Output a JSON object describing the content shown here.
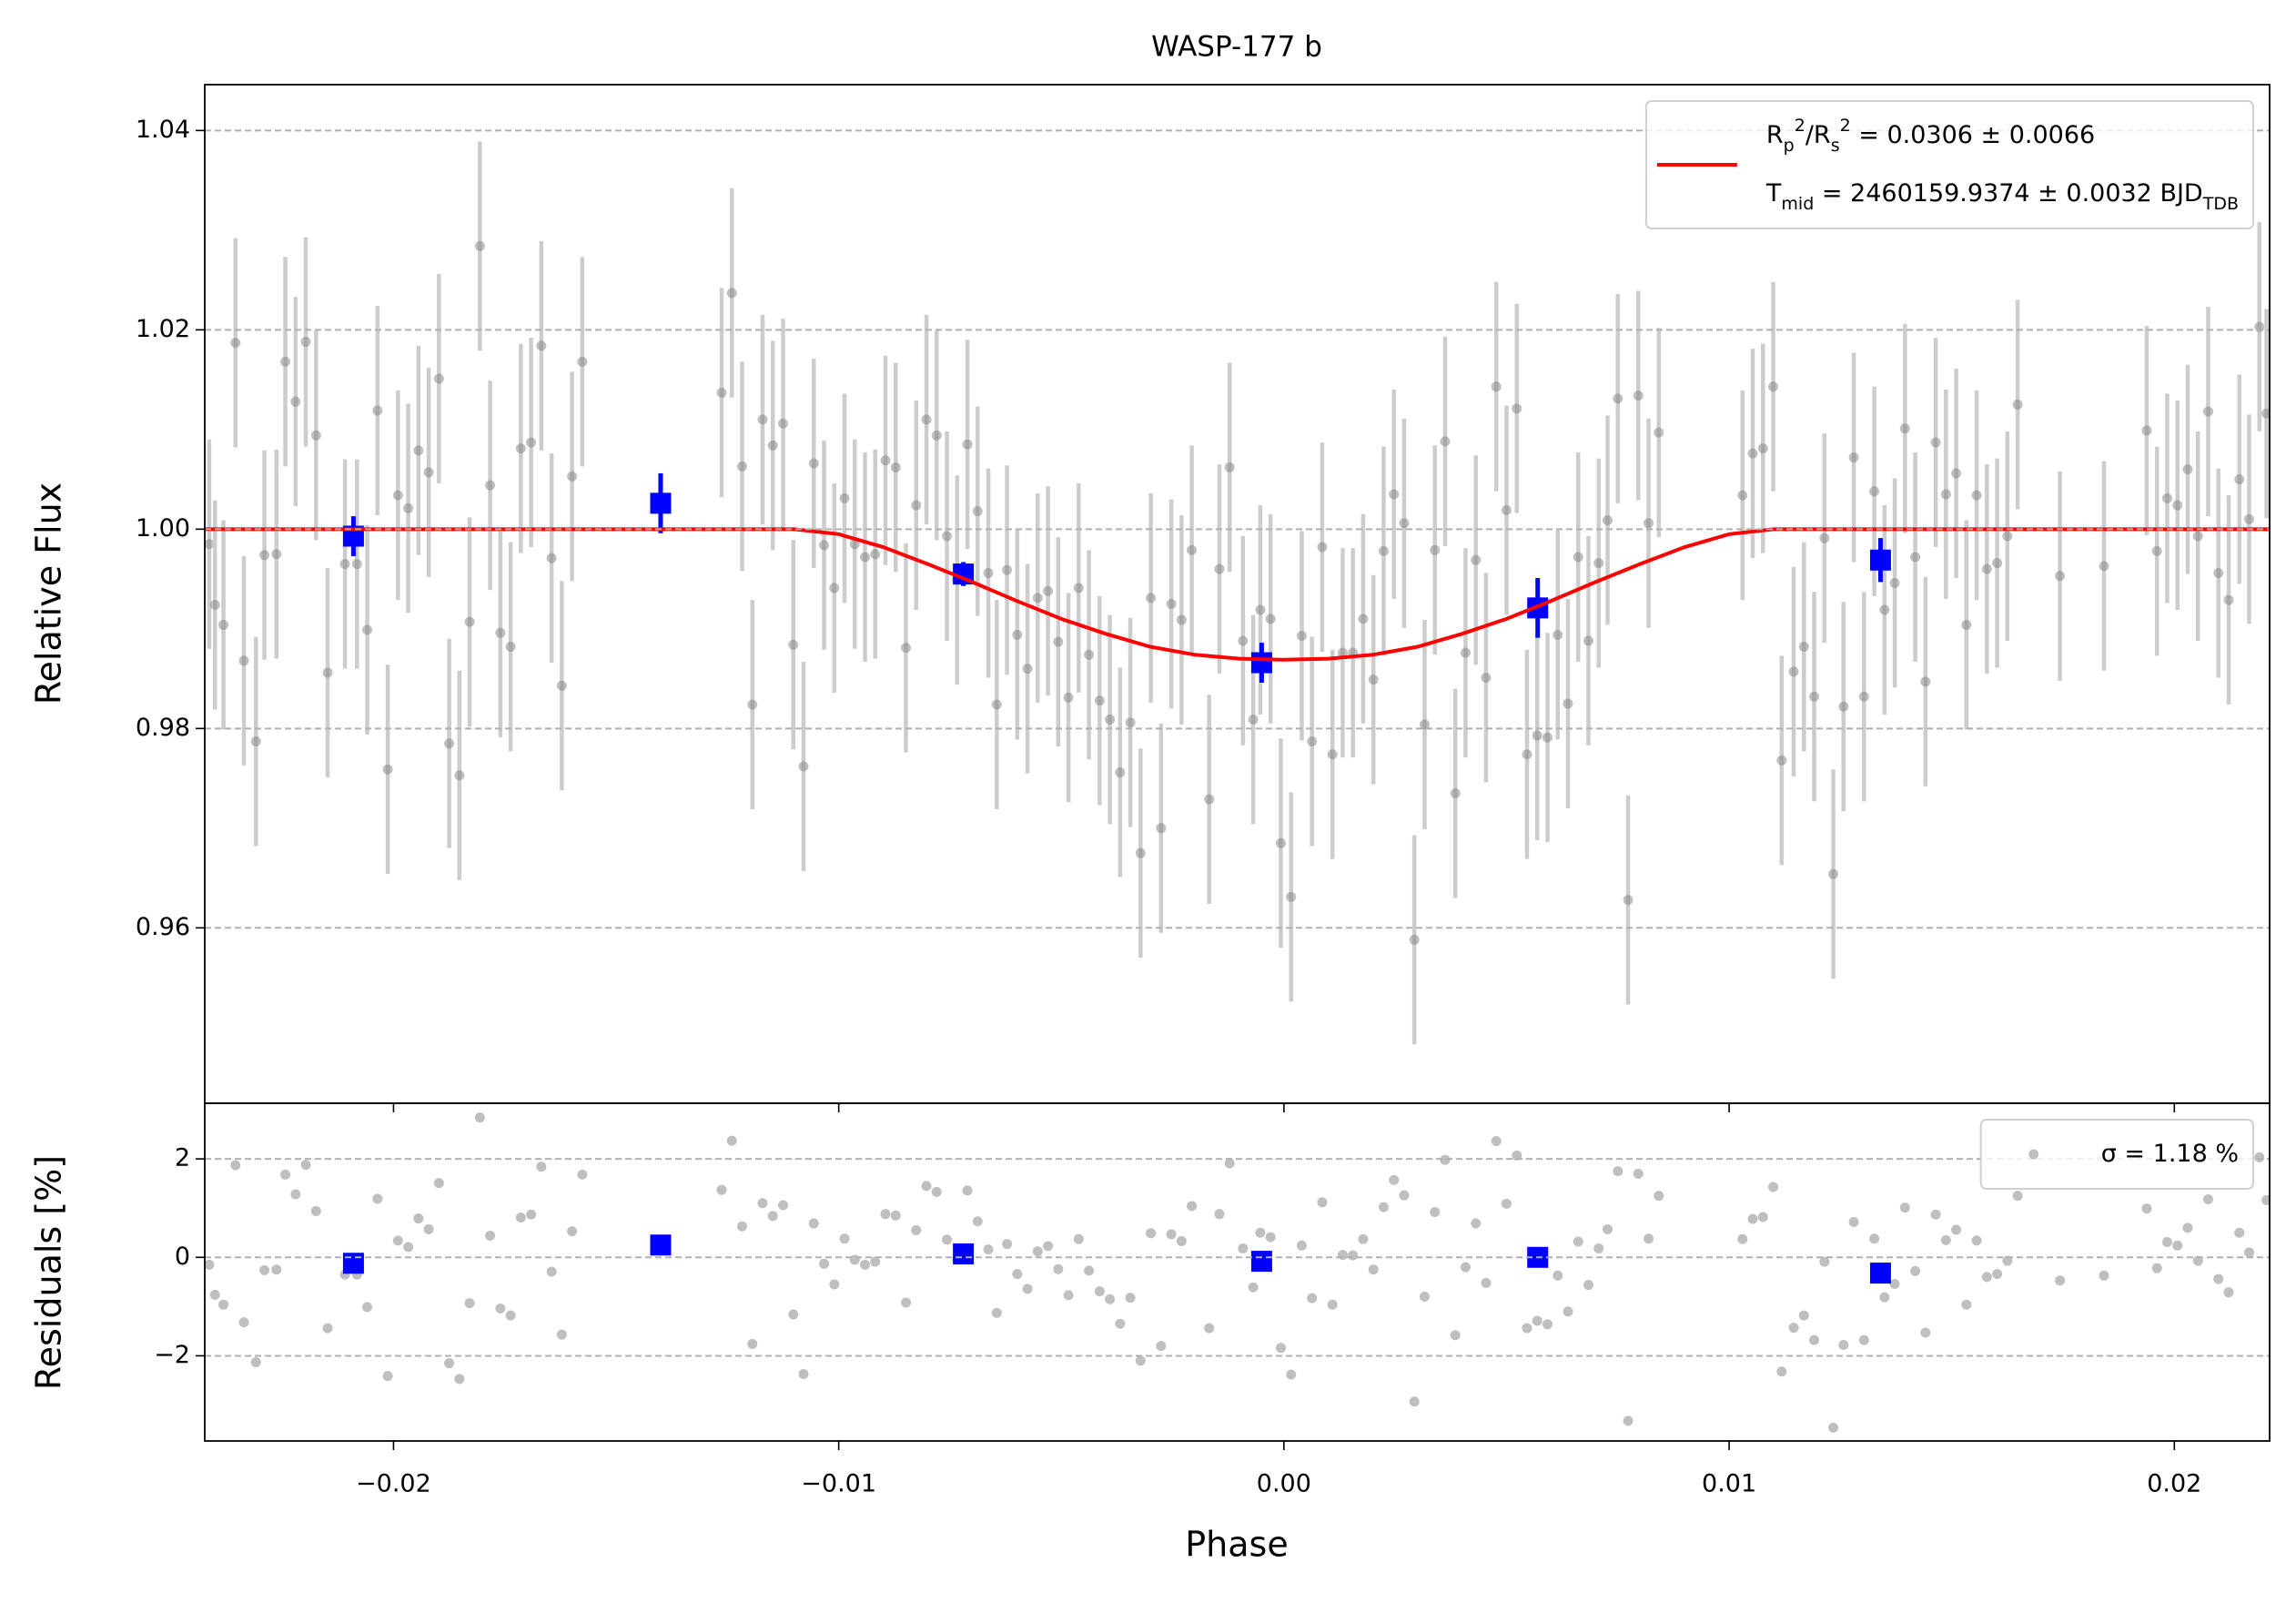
{
  "chart_data": [
    {
      "type": "scatter",
      "title": "WASP-177 b",
      "ylabel": "Relative Flux",
      "xlim": [
        -0.02424,
        0.02214
      ],
      "ylim": [
        0.9424,
        1.0446
      ],
      "yticks": [
        0.96,
        0.98,
        {
          "value": 1,
          "label": "1.00"
        },
        1.02,
        1.04
      ],
      "grid": true,
      "legend": "upper right",
      "series": [
        {
          "color": "#808080",
          "error_color": "#cccccc",
          "yerr": 0.0105,
          "x": [
            -0.02414,
            -0.02401,
            -0.02382,
            -0.02355,
            -0.02336,
            -0.02309,
            -0.0229,
            -0.02263,
            -0.02243,
            -0.0222,
            -0.02197,
            -0.02174,
            -0.02148,
            -0.02109,
            -0.02082,
            -0.02059,
            -0.02036,
            -0.02013,
            -0.0199,
            -0.01967,
            -0.01944,
            -0.01921,
            -0.01898,
            -0.01875,
            -0.01852,
            -0.01829,
            -0.01806,
            -0.01783,
            -0.0176,
            -0.01737,
            -0.01714,
            -0.01691,
            -0.01668,
            -0.01645,
            -0.01622,
            -0.01599,
            -0.01576,
            -0.01263,
            -0.0124,
            -0.01217,
            -0.01194,
            -0.01171,
            -0.01148,
            -0.01125,
            -0.01102,
            -0.01079,
            -0.01056,
            -0.01033,
            -0.0101,
            -0.00987,
            -0.00964,
            -0.00941,
            -0.00918,
            -0.00895,
            -0.00872,
            -0.00849,
            -0.00826,
            -0.00803,
            -0.0078,
            -0.00757,
            -0.00734,
            -0.00711,
            -0.00688,
            -0.00664,
            -0.00645,
            -0.00622,
            -0.00599,
            -0.00576,
            -0.00553,
            -0.0053,
            -0.00507,
            -0.00484,
            -0.00461,
            -0.00438,
            -0.00414,
            -0.00391,
            -0.00368,
            -0.00345,
            -0.00322,
            -0.00299,
            -0.00276,
            -0.00253,
            -0.0023,
            -0.00207,
            -0.00168,
            -0.00145,
            -0.00122,
            -0.00092,
            -0.00069,
            -0.00053,
            -0.0003,
            -7e-05,
            0.00016,
            0.0004,
            0.00063,
            0.00086,
            0.00109,
            0.00132,
            0.00155,
            0.00178,
            0.00201,
            0.00224,
            0.00247,
            0.0027,
            0.00293,
            0.00316,
            0.00339,
            0.00362,
            0.00385,
            0.00408,
            0.00431,
            0.00454,
            0.00477,
            0.005,
            0.00523,
            0.00546,
            0.00569,
            0.00592,
            0.00615,
            0.00638,
            0.00661,
            0.00684,
            0.00707,
            0.00727,
            0.0075,
            0.00773,
            0.00796,
            0.00819,
            0.00842,
            0.0103,
            0.01053,
            0.01076,
            0.01099,
            0.01118,
            0.01145,
            0.01168,
            0.01191,
            0.01214,
            0.01234,
            0.01257,
            0.0128,
            0.01303,
            0.01326,
            0.01349,
            0.01372,
            0.01395,
            0.01418,
            0.01441,
            0.01464,
            0.01487,
            0.0151,
            0.01533,
            0.01556,
            0.01579,
            0.01602,
            0.01625,
            0.01648,
            0.01743,
            0.01842,
            0.01938,
            0.01961,
            0.01984,
            0.02007,
            0.0203,
            0.02053,
            0.02076,
            0.02099,
            0.02122,
            0.02146,
            0.02168,
            0.02191,
            0.02207
          ],
          "values": [
            0.9985,
            0.9924,
            0.9904,
            1.0187,
            0.9868,
            0.9787,
            0.9974,
            0.9975,
            1.0168,
            1.0128,
            1.0188,
            1.0094,
            0.9856,
            0.9965,
            0.9965,
            0.9899,
            1.0119,
            0.9759,
            1.0034,
            1.0021,
            1.0079,
            1.0057,
            1.0151,
            0.9785,
            0.9753,
            0.9907,
            1.0284,
            1.0044,
            0.9896,
            0.9882,
            1.0081,
            1.0087,
            1.0184,
            0.9971,
            0.9843,
            1.0053,
            1.0168,
            1.0137,
            1.0237,
            1.0063,
            0.9824,
            1.011,
            1.0084,
            1.0106,
            0.9884,
            0.9762,
            1.0066,
            0.9984,
            0.9941,
            1.0031,
            0.9985,
            0.9972,
            0.9975,
            1.0069,
            1.0062,
            0.9881,
            1.0024,
            1.011,
            1.0094,
            0.9993,
            0.9949,
            1.0085,
            1.0018,
            0.9956,
            0.9824,
            0.9959,
            0.9894,
            0.986,
            0.9931,
            0.9938,
            0.9887,
            0.9831,
            0.9941,
            0.9874,
            0.9828,
            0.9809,
            0.9756,
            0.9806,
            0.9675,
            0.9931,
            0.97,
            0.9925,
            0.9909,
            0.9979,
            0.9729,
            0.996,
            1.0062,
            0.9888,
            0.9809,
            0.9919,
            0.991,
            0.9685,
            0.9631,
            0.9893,
            0.9787,
            0.9982,
            0.9774,
            0.9876,
            0.9876,
            0.991,
            0.9849,
            0.9978,
            1.0035,
            1.0006,
            0.9588,
            0.9804,
            0.9979,
            1.0088,
            0.9735,
            0.9876,
            0.9969,
            0.9851,
            1.0143,
            1.0019,
            1.0121,
            0.9774,
            0.9793,
            0.9791,
            0.9894,
            0.9825,
            0.9972,
            0.9888,
            0.9966,
            1.0009,
            1.0131,
            0.9628,
            1.0134,
            1.0006,
            1.0097,
            1.0034,
            1.0076,
            1.0081,
            1.0143,
            0.9768,
            0.9857,
            0.9882,
            0.9832,
            0.9991,
            0.9654,
            0.9822,
            1.0072,
            0.9832,
            1.0038,
            0.9919,
            0.9946,
            1.0101,
            0.9972,
            0.9847,
            1.0087,
            1.0035,
            1.0056,
            0.9904,
            1.0034,
            0.996,
            0.9966,
            0.9993,
            1.0125,
            0.9953,
            0.9963,
            1.0099,
            0.9978,
            1.0031,
            1.0024,
            1.006,
            0.9993,
            1.0118,
            0.9956,
            0.9929,
            1.005,
            1.001,
            1.0203,
            1.0116
          ]
        },
        {
          "color": "#0000ff",
          "marker": "square",
          "x": [
            -0.0209,
            -0.014,
            -0.0072,
            -0.0005,
            0.0057,
            0.0134
          ],
          "values": [
            0.9993,
            1.0026,
            0.9955,
            0.9866,
            0.9921,
            0.9969
          ],
          "yerr": [
            0.002,
            0.003,
            0.0012,
            0.002,
            0.003,
            0.0022
          ]
        },
        {
          "type": "line",
          "color": "#ff0000",
          "name": [
            "R_{p}^{2}/R_{s}^{2} = 0.0306 ± 0.0066",
            "T_{mid} = 2460159.9374 ± 0.0032 BJD_{TDB}"
          ],
          "x": [
            -0.02424,
            -0.011,
            -0.01,
            -0.009,
            -0.008,
            -0.007,
            -0.006,
            -0.005,
            -0.004,
            -0.003,
            -0.002,
            -0.001,
            0,
            0.001,
            0.002,
            0.003,
            0.004,
            0.005,
            0.006,
            0.007,
            0.008,
            0.009,
            0.01,
            0.011,
            0.02214
          ],
          "values": [
            1,
            1,
            0.9995,
            0.9982,
            0.9965,
            0.9947,
            0.9928,
            0.991,
            0.9895,
            0.9882,
            0.9874,
            0.987,
            0.9869,
            0.987,
            0.9874,
            0.9882,
            0.9895,
            0.991,
            0.9928,
            0.9947,
            0.9965,
            0.9982,
            0.9995,
            1,
            1
          ]
        }
      ]
    },
    {
      "type": "scatter",
      "xlabel": "Phase",
      "ylabel": "Residuals [%]",
      "xlim": [
        -0.02424,
        0.02214
      ],
      "xticks": [
        {
          "value": -0.02,
          "label": "−0.02"
        },
        {
          "value": -0.01,
          "label": "−0.01"
        },
        {
          "value": 0,
          "label": "0.00"
        },
        0.01,
        0.02
      ],
      "ylim": [
        -3.73,
        3.13
      ],
      "yticks": [
        {
          "value": -2,
          "label": "−2"
        },
        0,
        2
      ],
      "grid": true,
      "legend": "upper right",
      "series": [
        {
          "name": "σ = 1.18 %",
          "color": "#808080",
          "values": [
            -0.15,
            -0.76,
            -0.96,
            1.87,
            -1.32,
            -2.13,
            -0.26,
            -0.25,
            1.68,
            1.28,
            1.88,
            0.94,
            -1.44,
            -0.35,
            -0.35,
            -1.01,
            1.19,
            -2.41,
            0.34,
            0.21,
            0.79,
            0.57,
            1.51,
            -2.15,
            -2.47,
            -0.93,
            2.84,
            0.44,
            -1.04,
            -1.18,
            0.81,
            0.87,
            1.84,
            -0.29,
            -1.57,
            0.53,
            1.68,
            1.37,
            2.37,
            0.63,
            -1.76,
            1.1,
            0.84,
            1.06,
            -1.16,
            -2.37,
            0.69,
            -0.13,
            -0.55,
            0.38,
            -0.05,
            -0.15,
            -0.09,
            0.88,
            0.85,
            -0.92,
            0.55,
            1.45,
            1.33,
            0.36,
            -0.04,
            1.36,
            0.73,
            0.16,
            -1.13,
            0.27,
            -0.34,
            -0.64,
            0.12,
            0.23,
            -0.24,
            -0.77,
            0.37,
            -0.27,
            -0.69,
            -0.85,
            -1.35,
            -0.82,
            -2.1,
            0.49,
            -1.8,
            0.47,
            0.33,
            1.04,
            -1.44,
            0.88,
            1.91,
            0.18,
            -0.61,
            0.5,
            0.41,
            -1.84,
            -2.38,
            0.24,
            -0.83,
            1.12,
            -0.96,
            0.05,
            0.04,
            0.37,
            -0.25,
            1.02,
            1.57,
            1.26,
            -2.93,
            -0.8,
            0.92,
            1.98,
            -1.58,
            -0.2,
            0.69,
            -0.52,
            2.36,
            1.09,
            2.07,
            -1.44,
            -1.29,
            -1.36,
            -0.37,
            -1.1,
            0.32,
            -0.56,
            0.18,
            0.57,
            1.75,
            -3.32,
            1.7,
            0.38,
            1.25,
            0.37,
            0.78,
            0.82,
            1.43,
            -2.32,
            -1.43,
            -1.18,
            -1.68,
            -0.09,
            -3.46,
            -1.78,
            0.72,
            -1.68,
            0.38,
            -0.81,
            -0.54,
            1.01,
            -0.28,
            -1.53,
            0.87,
            0.35,
            0.56,
            -0.96,
            0.34,
            -0.4,
            -0.34,
            -0.07,
            1.25,
            -0.47,
            -0.37,
            0.99,
            -0.22,
            0.31,
            0.24,
            0.6,
            -0.07,
            1.18,
            -0.44,
            -0.71,
            0.5,
            0.1,
            2.03,
            1.16
          ]
        },
        {
          "color": "#0000ff",
          "marker": "square",
          "values": [
            -0.12,
            0.25,
            0.07,
            -0.08,
            0.0,
            -0.32
          ]
        }
      ]
    }
  ]
}
